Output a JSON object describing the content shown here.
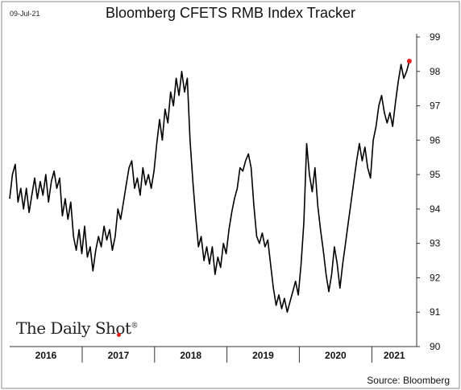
{
  "date_label": "09-Jul-21",
  "source": "Source: Bloomberg",
  "brand": {
    "name": "The Daily Shot",
    "mark": "®"
  },
  "colors": {
    "line": "#000000",
    "last_point": "#e0201c",
    "axis": "#333333",
    "frame": "#8a8a8a"
  },
  "chart_data": {
    "type": "line",
    "title": "Bloomberg CFETS RMB Index Tracker",
    "xlabel": "",
    "ylabel": "",
    "ylim": [
      90,
      99
    ],
    "yticks": [
      90,
      91,
      92,
      93,
      94,
      95,
      96,
      97,
      98,
      99
    ],
    "xlim": [
      "2016-01-01",
      "2021-08-15"
    ],
    "year_labels": [
      "2016",
      "2017",
      "2018",
      "2019",
      "2020",
      "2021"
    ],
    "axis_side": "right",
    "grid": false,
    "series": [
      {
        "values": [
          [
            "2016-01-01",
            94.3
          ],
          [
            "2016-01-15",
            95.0
          ],
          [
            "2016-01-29",
            95.3
          ],
          [
            "2016-02-12",
            94.2
          ],
          [
            "2016-02-26",
            94.6
          ],
          [
            "2016-03-11",
            94.0
          ],
          [
            "2016-03-25",
            94.6
          ],
          [
            "2016-04-08",
            93.9
          ],
          [
            "2016-04-22",
            94.4
          ],
          [
            "2016-05-06",
            94.9
          ],
          [
            "2016-05-20",
            94.3
          ],
          [
            "2016-06-03",
            94.8
          ],
          [
            "2016-06-17",
            94.4
          ],
          [
            "2016-07-01",
            95.0
          ],
          [
            "2016-07-15",
            94.2
          ],
          [
            "2016-07-29",
            94.8
          ],
          [
            "2016-08-12",
            95.1
          ],
          [
            "2016-08-26",
            94.6
          ],
          [
            "2016-09-09",
            94.9
          ],
          [
            "2016-09-23",
            93.8
          ],
          [
            "2016-10-07",
            94.3
          ],
          [
            "2016-10-21",
            93.7
          ],
          [
            "2016-11-04",
            94.2
          ],
          [
            "2016-11-18",
            93.2
          ],
          [
            "2016-12-02",
            92.8
          ],
          [
            "2016-12-16",
            93.4
          ],
          [
            "2016-12-30",
            92.7
          ],
          [
            "2017-01-13",
            93.5
          ],
          [
            "2017-01-27",
            92.6
          ],
          [
            "2017-02-10",
            92.9
          ],
          [
            "2017-02-24",
            92.2
          ],
          [
            "2017-03-10",
            92.8
          ],
          [
            "2017-03-24",
            93.2
          ],
          [
            "2017-04-07",
            92.9
          ],
          [
            "2017-04-21",
            93.5
          ],
          [
            "2017-05-05",
            93.1
          ],
          [
            "2017-05-19",
            93.4
          ],
          [
            "2017-06-02",
            92.8
          ],
          [
            "2017-06-16",
            93.2
          ],
          [
            "2017-06-30",
            94.0
          ],
          [
            "2017-07-14",
            93.7
          ],
          [
            "2017-07-28",
            94.2
          ],
          [
            "2017-08-11",
            94.7
          ],
          [
            "2017-08-25",
            95.2
          ],
          [
            "2017-09-08",
            95.4
          ],
          [
            "2017-09-22",
            94.6
          ],
          [
            "2017-10-06",
            94.9
          ],
          [
            "2017-10-20",
            94.4
          ],
          [
            "2017-11-03",
            95.2
          ],
          [
            "2017-11-17",
            94.7
          ],
          [
            "2017-12-01",
            95.0
          ],
          [
            "2017-12-15",
            94.6
          ],
          [
            "2017-12-29",
            95.1
          ],
          [
            "2018-01-12",
            95.9
          ],
          [
            "2018-01-26",
            96.6
          ],
          [
            "2018-02-09",
            96.0
          ],
          [
            "2018-02-23",
            96.9
          ],
          [
            "2018-03-09",
            96.5
          ],
          [
            "2018-03-23",
            97.4
          ],
          [
            "2018-04-06",
            97.0
          ],
          [
            "2018-04-20",
            97.8
          ],
          [
            "2018-05-04",
            97.3
          ],
          [
            "2018-05-18",
            98.0
          ],
          [
            "2018-06-01",
            97.4
          ],
          [
            "2018-06-15",
            97.8
          ],
          [
            "2018-06-29",
            96.0
          ],
          [
            "2018-07-13",
            94.8
          ],
          [
            "2018-07-27",
            93.8
          ],
          [
            "2018-08-10",
            92.9
          ],
          [
            "2018-08-24",
            93.2
          ],
          [
            "2018-09-07",
            92.5
          ],
          [
            "2018-09-21",
            92.9
          ],
          [
            "2018-10-05",
            92.4
          ],
          [
            "2018-10-19",
            92.9
          ],
          [
            "2018-11-02",
            92.1
          ],
          [
            "2018-11-16",
            92.6
          ],
          [
            "2018-11-30",
            92.3
          ],
          [
            "2018-12-14",
            93.0
          ],
          [
            "2018-12-28",
            92.7
          ],
          [
            "2019-01-11",
            93.4
          ],
          [
            "2019-01-25",
            93.9
          ],
          [
            "2019-02-08",
            94.3
          ],
          [
            "2019-02-22",
            94.6
          ],
          [
            "2019-03-08",
            95.2
          ],
          [
            "2019-03-22",
            95.1
          ],
          [
            "2019-04-05",
            95.4
          ],
          [
            "2019-04-19",
            95.6
          ],
          [
            "2019-05-03",
            95.2
          ],
          [
            "2019-05-17",
            94.1
          ],
          [
            "2019-05-31",
            93.2
          ],
          [
            "2019-06-14",
            93.0
          ],
          [
            "2019-06-28",
            93.3
          ],
          [
            "2019-07-12",
            92.9
          ],
          [
            "2019-07-26",
            93.1
          ],
          [
            "2019-08-09",
            92.4
          ],
          [
            "2019-08-23",
            91.7
          ],
          [
            "2019-09-06",
            91.2
          ],
          [
            "2019-09-20",
            91.5
          ],
          [
            "2019-10-04",
            91.1
          ],
          [
            "2019-10-18",
            91.4
          ],
          [
            "2019-11-01",
            91.0
          ],
          [
            "2019-11-15",
            91.3
          ],
          [
            "2019-11-29",
            91.6
          ],
          [
            "2019-12-13",
            91.9
          ],
          [
            "2019-12-27",
            91.5
          ],
          [
            "2020-01-10",
            92.4
          ],
          [
            "2020-01-24",
            93.6
          ],
          [
            "2020-02-07",
            95.9
          ],
          [
            "2020-02-21",
            95.0
          ],
          [
            "2020-03-06",
            94.5
          ],
          [
            "2020-03-20",
            95.2
          ],
          [
            "2020-04-03",
            94.1
          ],
          [
            "2020-04-17",
            93.4
          ],
          [
            "2020-05-01",
            92.8
          ],
          [
            "2020-05-15",
            92.1
          ],
          [
            "2020-05-29",
            91.6
          ],
          [
            "2020-06-12",
            92.1
          ],
          [
            "2020-06-26",
            92.9
          ],
          [
            "2020-07-10",
            92.4
          ],
          [
            "2020-07-24",
            91.7
          ],
          [
            "2020-08-07",
            92.4
          ],
          [
            "2020-08-21",
            93.0
          ],
          [
            "2020-09-04",
            93.6
          ],
          [
            "2020-09-18",
            94.2
          ],
          [
            "2020-10-02",
            94.8
          ],
          [
            "2020-10-16",
            95.4
          ],
          [
            "2020-10-30",
            95.9
          ],
          [
            "2020-11-13",
            95.4
          ],
          [
            "2020-11-27",
            95.8
          ],
          [
            "2020-12-11",
            95.2
          ],
          [
            "2020-12-25",
            94.9
          ],
          [
            "2021-01-08",
            96.0
          ],
          [
            "2021-01-22",
            96.4
          ],
          [
            "2021-02-05",
            97.0
          ],
          [
            "2021-02-19",
            97.3
          ],
          [
            "2021-03-05",
            96.8
          ],
          [
            "2021-03-19",
            96.5
          ],
          [
            "2021-04-02",
            96.8
          ],
          [
            "2021-04-16",
            96.4
          ],
          [
            "2021-04-30",
            97.1
          ],
          [
            "2021-05-14",
            97.7
          ],
          [
            "2021-05-28",
            98.2
          ],
          [
            "2021-06-11",
            97.8
          ],
          [
            "2021-06-25",
            98.0
          ],
          [
            "2021-07-09",
            98.3
          ]
        ]
      }
    ]
  }
}
